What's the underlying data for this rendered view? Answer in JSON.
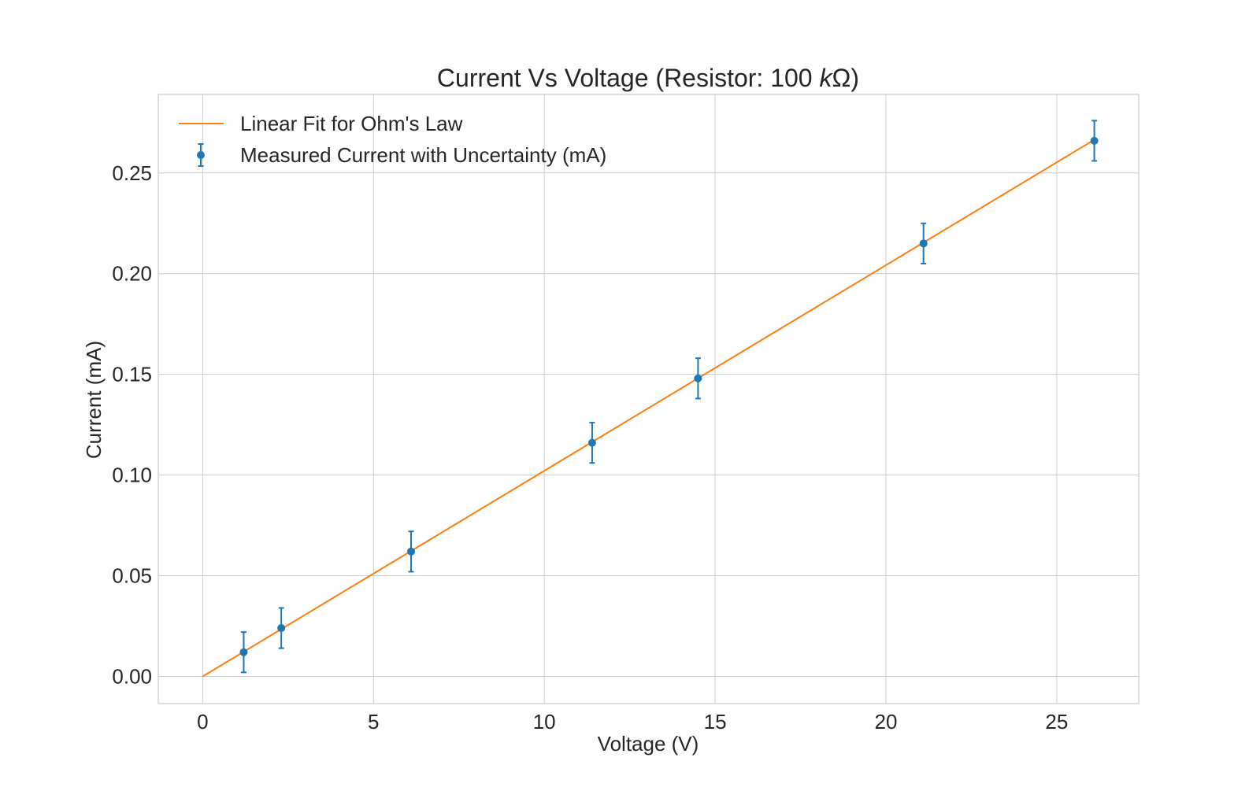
{
  "chart_data": {
    "type": "scatter",
    "title": "Current Vs Voltage (Resistor: 100 kΩ)",
    "title_parts": {
      "prefix": "Current Vs Voltage (Resistor: 100 ",
      "italic": "k",
      "suffix": "Ω)"
    },
    "xlabel": "Voltage (V)",
    "ylabel": "Current (mA)",
    "xlim": [
      -1.3,
      27.4
    ],
    "ylim": [
      -0.0135,
      0.289
    ],
    "xticks": [
      0,
      5,
      10,
      15,
      20,
      25
    ],
    "yticks": [
      0.0,
      0.05,
      0.1,
      0.15,
      0.2,
      0.25
    ],
    "xtick_labels": [
      "0",
      "5",
      "10",
      "15",
      "20",
      "25"
    ],
    "ytick_labels": [
      "0.00",
      "0.05",
      "0.10",
      "0.15",
      "0.20",
      "0.25"
    ],
    "grid": true,
    "legend_position": "top-left",
    "series": [
      {
        "name": "Linear Fit for Ohm's Law",
        "kind": "line",
        "color": "#ff7f0e",
        "x": [
          0,
          26.1
        ],
        "y": [
          0.0,
          0.2665
        ]
      },
      {
        "name": "Measured Current with Uncertainty (mA)",
        "kind": "errorbar",
        "color": "#1f77b4",
        "x": [
          1.2,
          2.3,
          6.1,
          11.4,
          14.5,
          21.1,
          26.1
        ],
        "y": [
          0.012,
          0.024,
          0.062,
          0.116,
          0.148,
          0.215,
          0.266
        ],
        "yerr": [
          0.01,
          0.01,
          0.01,
          0.01,
          0.01,
          0.01,
          0.01
        ]
      }
    ]
  }
}
